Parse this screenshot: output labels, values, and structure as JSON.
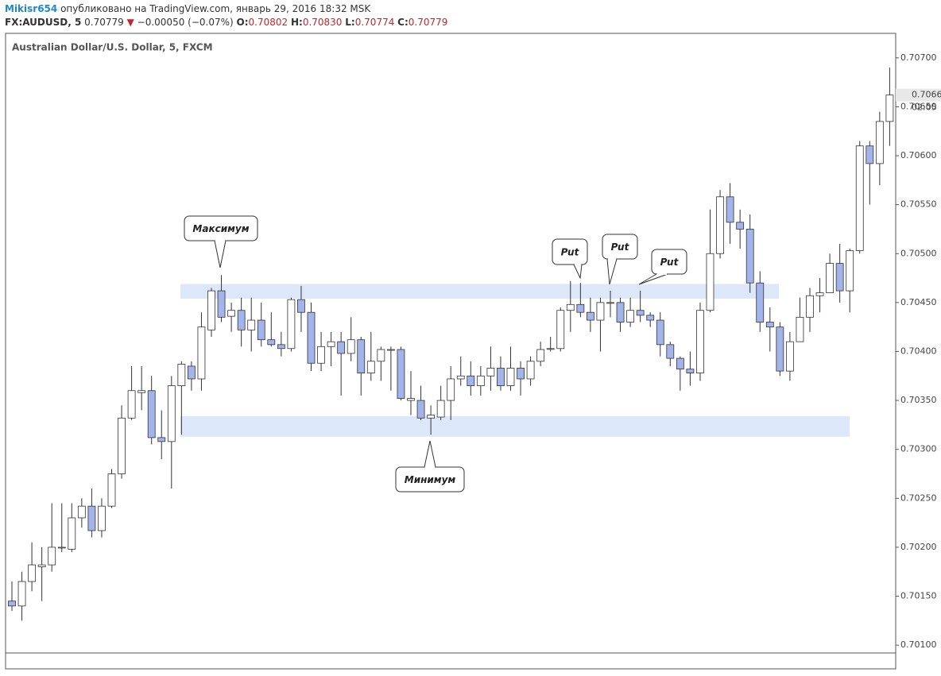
{
  "header": {
    "author": "Mikisr654",
    "published": "опубликовано на TradingView.com, январь 29, 2016 18:32 MSK",
    "symbol": "FX:AUDUSD, 5",
    "price": "0.70779",
    "change": "−0.00050 (−0.07%)",
    "o_label": "O:",
    "open": "0.70802",
    "h_label": "H:",
    "high": "0.70830",
    "l_label": "L:",
    "low": "0.70774",
    "c_label": "C:",
    "close": "0.70779"
  },
  "chart_data": {
    "type": "candlestick",
    "title": "Australian Dollar/U.S. Dollar, 5, FXCM",
    "ylim": [
      0.70092,
      0.70725
    ],
    "yticks": [
      {
        "value": 0.701,
        "label": "0.70100"
      },
      {
        "value": 0.7015,
        "label": "0.70150"
      },
      {
        "value": 0.702,
        "label": "0.70200"
      },
      {
        "value": 0.7025,
        "label": "0.70250"
      },
      {
        "value": 0.703,
        "label": "0.70300"
      },
      {
        "value": 0.7035,
        "label": "0.70350"
      },
      {
        "value": 0.704,
        "label": "0.70400"
      },
      {
        "value": 0.7045,
        "label": "0.70450"
      },
      {
        "value": 0.705,
        "label": "0.70500"
      },
      {
        "value": 0.7055,
        "label": "0.70550"
      },
      {
        "value": 0.706,
        "label": "0.70600"
      },
      {
        "value": 0.7065,
        "label": "0.70650"
      },
      {
        "value": 0.707,
        "label": "0.70700"
      }
    ],
    "up_color": "#ffffff",
    "down_color": "#a3b4ea",
    "wick_color": "#333333",
    "open": [
      0.70145,
      0.7014,
      0.70165,
      0.7018,
      0.70182,
      0.702,
      0.70198,
      0.7023,
      0.70242,
      0.70217,
      0.70242,
      0.70275,
      0.70332,
      0.70358,
      0.7036,
      0.70312,
      0.70308,
      0.70365,
      0.70385,
      0.70372,
      0.70422,
      0.70462,
      0.70436,
      0.70442,
      0.70422,
      0.70432,
      0.70412,
      0.70407,
      0.70403,
      0.70453,
      0.7044,
      0.70388,
      0.70405,
      0.7041,
      0.70398,
      0.70412,
      0.70378,
      0.7039,
      0.70402,
      0.70402,
      0.7035,
      0.7035,
      0.70332,
      0.70333,
      0.7035,
      0.70372,
      0.70375,
      0.70365,
      0.70375,
      0.70383,
      0.70365,
      0.70383,
      0.70372,
      0.7039,
      0.70403,
      0.70403,
      0.70442,
      0.70448,
      0.7044,
      0.70432,
      0.7045,
      0.7045,
      0.7043,
      0.70442,
      0.70437,
      0.70432,
      0.70407,
      0.70393,
      0.70382,
      0.70378,
      0.70442,
      0.705,
      0.70558,
      0.70532,
      0.70525,
      0.7047,
      0.7043,
      0.70425,
      0.7038,
      0.7041,
      0.70435,
      0.70457,
      0.7046,
      0.7049,
      0.70462,
      0.70503,
      0.7061,
      0.70592,
      0.70635
    ],
    "high": [
      0.70165,
      0.70175,
      0.70205,
      0.702,
      0.70245,
      0.70245,
      0.70245,
      0.7025,
      0.7026,
      0.7025,
      0.7028,
      0.70345,
      0.70385,
      0.70385,
      0.70375,
      0.7034,
      0.70375,
      0.7039,
      0.7039,
      0.7044,
      0.70465,
      0.70478,
      0.7045,
      0.70455,
      0.70455,
      0.7045,
      0.7044,
      0.7042,
      0.70455,
      0.70467,
      0.7045,
      0.7042,
      0.7042,
      0.7042,
      0.70435,
      0.70415,
      0.7042,
      0.70405,
      0.70405,
      0.70405,
      0.7038,
      0.70365,
      0.70345,
      0.70365,
      0.70385,
      0.70395,
      0.7039,
      0.70385,
      0.70405,
      0.70395,
      0.70405,
      0.7039,
      0.70395,
      0.7041,
      0.70415,
      0.70445,
      0.70472,
      0.7047,
      0.70455,
      0.70455,
      0.70462,
      0.70455,
      0.70455,
      0.70462,
      0.7044,
      0.7044,
      0.7041,
      0.70395,
      0.704,
      0.7045,
      0.70545,
      0.70565,
      0.70572,
      0.70545,
      0.7054,
      0.70482,
      0.70445,
      0.7043,
      0.7042,
      0.70455,
      0.70465,
      0.70475,
      0.705,
      0.7051,
      0.70505,
      0.70615,
      0.70615,
      0.70645,
      0.7069
    ],
    "low": [
      0.70135,
      0.70125,
      0.70155,
      0.70145,
      0.70175,
      0.70195,
      0.70195,
      0.7022,
      0.7021,
      0.7021,
      0.7024,
      0.7027,
      0.7033,
      0.7034,
      0.70305,
      0.7029,
      0.7026,
      0.70315,
      0.7036,
      0.7036,
      0.70415,
      0.7043,
      0.7042,
      0.70405,
      0.704,
      0.70405,
      0.70405,
      0.70395,
      0.704,
      0.7042,
      0.7038,
      0.7038,
      0.70385,
      0.70355,
      0.7039,
      0.70355,
      0.7037,
      0.7037,
      0.7036,
      0.7035,
      0.70335,
      0.7033,
      0.70315,
      0.7033,
      0.7033,
      0.70365,
      0.70355,
      0.70355,
      0.7036,
      0.7036,
      0.7036,
      0.70355,
      0.70365,
      0.70385,
      0.704,
      0.704,
      0.7042,
      0.70435,
      0.7042,
      0.704,
      0.70435,
      0.7042,
      0.70425,
      0.7043,
      0.70425,
      0.70395,
      0.70385,
      0.7036,
      0.70365,
      0.7037,
      0.7044,
      0.70495,
      0.7051,
      0.70505,
      0.7046,
      0.7042,
      0.704,
      0.70375,
      0.7037,
      0.7041,
      0.7042,
      0.7044,
      0.7046,
      0.7045,
      0.7044,
      0.705,
      0.7055,
      0.7057,
      0.7061
    ],
    "close": [
      0.7014,
      0.70165,
      0.70182,
      0.70182,
      0.702,
      0.702,
      0.7023,
      0.70242,
      0.70217,
      0.70242,
      0.70275,
      0.70332,
      0.7036,
      0.7036,
      0.70312,
      0.70308,
      0.70365,
      0.70387,
      0.70372,
      0.70425,
      0.70462,
      0.70435,
      0.70442,
      0.70422,
      0.70432,
      0.70412,
      0.70407,
      0.70403,
      0.70453,
      0.7044,
      0.70388,
      0.70405,
      0.7041,
      0.70398,
      0.70412,
      0.70378,
      0.7039,
      0.70402,
      0.70402,
      0.70352,
      0.70352,
      0.70332,
      0.70335,
      0.7035,
      0.70372,
      0.70375,
      0.70365,
      0.70375,
      0.70383,
      0.70365,
      0.70383,
      0.70372,
      0.7039,
      0.70402,
      0.70403,
      0.70442,
      0.70448,
      0.7044,
      0.70432,
      0.7045,
      0.7045,
      0.7043,
      0.70442,
      0.70437,
      0.70432,
      0.70407,
      0.70393,
      0.70382,
      0.70378,
      0.70442,
      0.705,
      0.70558,
      0.70532,
      0.70525,
      0.7047,
      0.7043,
      0.70425,
      0.7038,
      0.7041,
      0.70435,
      0.70457,
      0.7046,
      0.7049,
      0.70462,
      0.70503,
      0.7061,
      0.70592,
      0.70635,
      0.70662
    ],
    "last_price": 0.70662,
    "countdown": "02:05",
    "zones": [
      {
        "low": 0.70454,
        "high": 0.70469,
        "color": "#dce7f9"
      },
      {
        "low": 0.70313,
        "high": 0.70334,
        "color": "#dce7f9"
      }
    ],
    "annotations": [
      "Максимум",
      "Минимум",
      "Put",
      "Put",
      "Put"
    ]
  }
}
